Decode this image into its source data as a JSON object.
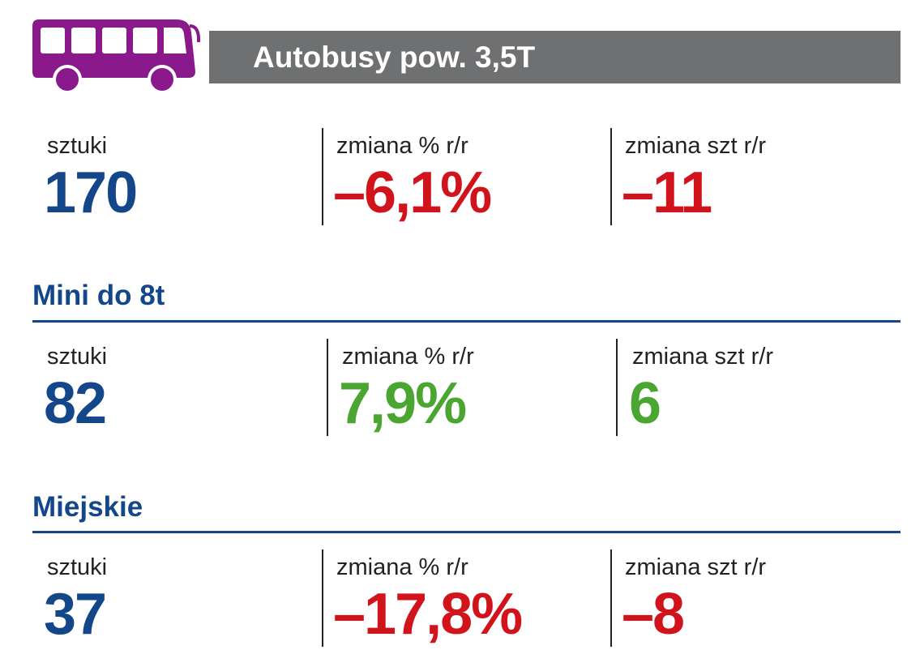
{
  "header": {
    "title": "Autobusy pow. 3,5T"
  },
  "total": {
    "stats": [
      {
        "label": "sztuki",
        "value": "170",
        "color": "#13478a"
      },
      {
        "label": "zmiana % r/r",
        "value": "–6,1%",
        "color": "#d1141c"
      },
      {
        "label": "zmiana szt r/r",
        "value": "–11",
        "color": "#d1141c"
      }
    ]
  },
  "sections": [
    {
      "title": "Mini do 8t",
      "stats": [
        {
          "label": "sztuki",
          "value": "82",
          "color": "#13478a"
        },
        {
          "label": "zmiana % r/r",
          "value": "7,9%",
          "color": "#4aa531"
        },
        {
          "label": "zmiana szt r/r",
          "value": "6",
          "color": "#4aa531"
        }
      ]
    },
    {
      "title": "Miejskie",
      "stats": [
        {
          "label": "sztuki",
          "value": "37",
          "color": "#13478a"
        },
        {
          "label": "zmiana % r/r",
          "value": "–17,8%",
          "color": "#d1141c"
        },
        {
          "label": "zmiana szt r/r",
          "value": "–8",
          "color": "#d1141c"
        }
      ]
    }
  ]
}
